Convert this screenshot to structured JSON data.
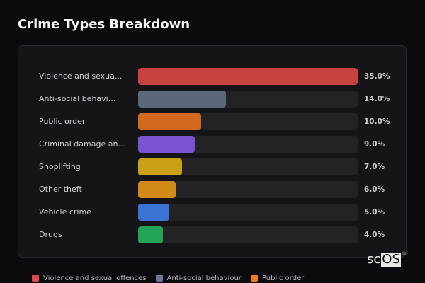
{
  "title": "Crime Types Breakdown",
  "chart_data": {
    "type": "bar",
    "orientation": "horizontal",
    "title": "Crime Types Breakdown",
    "categories": [
      "Violence and sexual offences",
      "Anti-social behaviour",
      "Public order",
      "Criminal damage and arson",
      "Shoplifting",
      "Other theft",
      "Vehicle crime",
      "Drugs"
    ],
    "display_labels": [
      "Violence and sexua...",
      "Anti-social behavi...",
      "Public order",
      "Criminal damage an...",
      "Shoplifting",
      "Other theft",
      "Vehicle crime",
      "Drugs"
    ],
    "values": [
      35.0,
      14.0,
      10.0,
      9.0,
      7.0,
      6.0,
      5.0,
      4.0
    ],
    "value_labels": [
      "35.0%",
      "14.0%",
      "10.0%",
      "9.0%",
      "7.0%",
      "6.0%",
      "5.0%",
      "4.0%"
    ],
    "colors": [
      "#c94242",
      "#5c677a",
      "#d2691e",
      "#7a52d2",
      "#c9a016",
      "#d48a18",
      "#3a73d4",
      "#22a556"
    ],
    "unit": "%",
    "xlabel": "",
    "ylabel": "",
    "grid": false,
    "legend": {
      "position": "bottom",
      "entries": [
        {
          "label": "Violence and sexual offences",
          "color": "#e0474c"
        },
        {
          "label": "Anti-social behaviour",
          "color": "#6b7891"
        },
        {
          "label": "Public order",
          "color": "#f07b24"
        }
      ]
    }
  },
  "watermark": {
    "sc": "sc",
    "os": "OS",
    "reg": "®"
  }
}
